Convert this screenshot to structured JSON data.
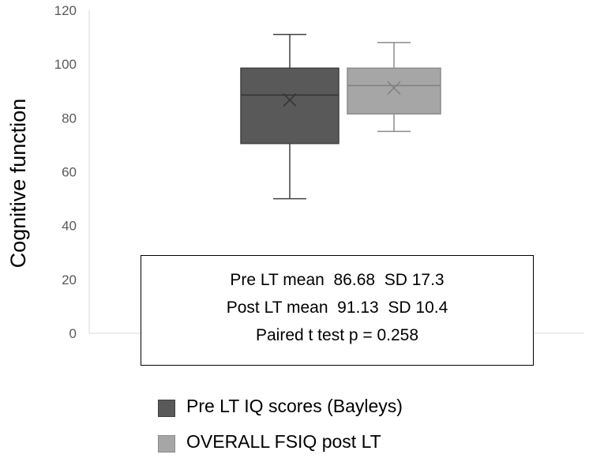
{
  "chart_data": {
    "type": "box",
    "ylabel": "Cognitive function",
    "ylim": [
      0,
      120
    ],
    "yticks": [
      0,
      20,
      40,
      60,
      80,
      100,
      120
    ],
    "grid": false,
    "legend_position": "bottom",
    "series": [
      {
        "name": "Pre LT IQ scores (Bayleys)",
        "color": "#595959",
        "min": 50,
        "q1": 70.5,
        "median": 88.5,
        "q3": 98.5,
        "max": 111,
        "mean": 86.68
      },
      {
        "name": "OVERALL FSIQ post LT",
        "color": "#a6a6a6",
        "min": 75,
        "q1": 81.5,
        "median": 92,
        "q3": 98.5,
        "max": 108,
        "mean": 91.13
      }
    ],
    "annotation": [
      "Pre LT mean  86.68  SD 17.3",
      "Post LT mean  91.13  SD 10.4",
      "Paired t test p = 0.258"
    ]
  }
}
